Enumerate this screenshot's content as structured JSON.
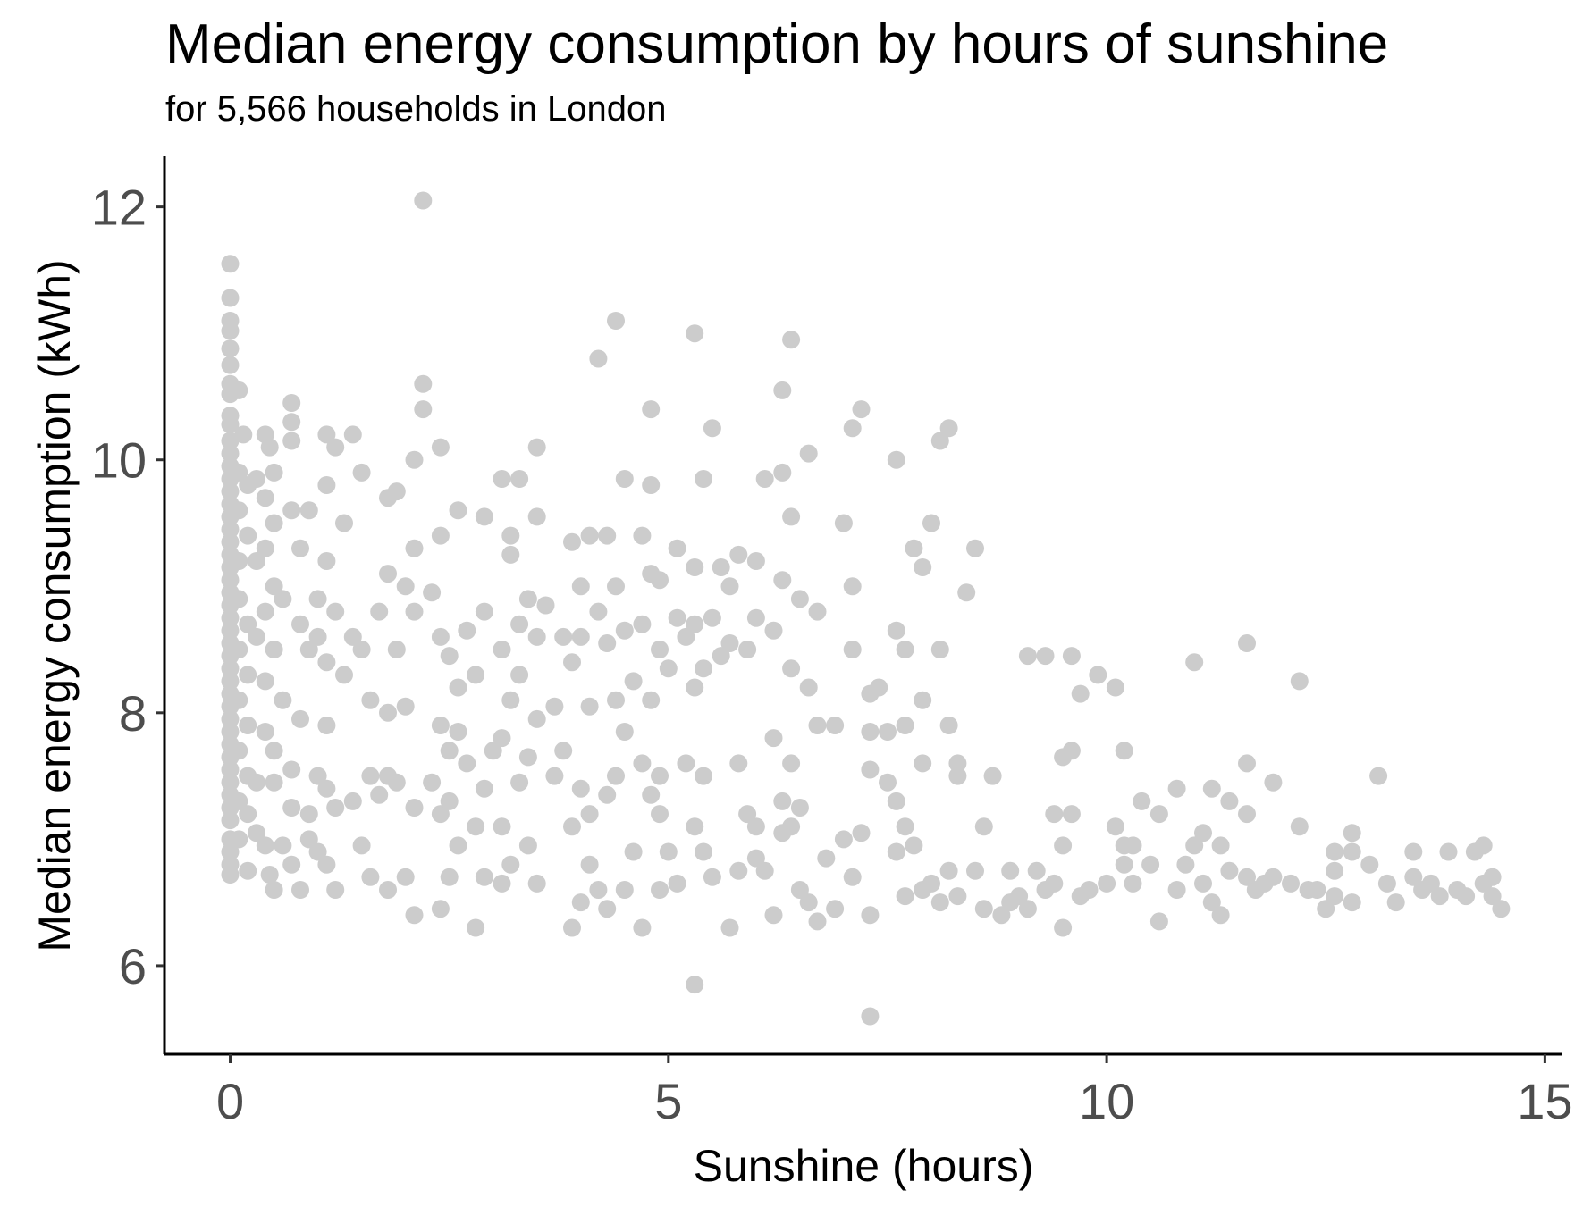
{
  "chart_data": {
    "type": "scatter",
    "title": "Median energy consumption by hours of sunshine",
    "subtitle": "for 5,566 households in London",
    "xlabel": "Sunshine (hours)",
    "ylabel": "Median energy consumption (kWh)",
    "xlim": [
      -0.75,
      15.2
    ],
    "ylim": [
      5.3,
      12.4
    ],
    "xticks": [
      0,
      5,
      10,
      15
    ],
    "yticks": [
      6,
      8,
      10,
      12
    ],
    "grid": false,
    "point_color": "#cccccc",
    "points": [
      [
        0,
        11.55
      ],
      [
        0,
        11.28
      ],
      [
        0,
        11.1
      ],
      [
        0,
        11.02
      ],
      [
        0,
        10.88
      ],
      [
        0,
        10.75
      ],
      [
        0,
        10.6
      ],
      [
        0,
        10.52
      ],
      [
        0,
        10.35
      ],
      [
        0,
        10.28
      ],
      [
        0,
        10.15
      ],
      [
        0,
        10.05
      ],
      [
        0,
        9.95
      ],
      [
        0,
        9.85
      ],
      [
        0,
        9.75
      ],
      [
        0,
        9.65
      ],
      [
        0,
        9.55
      ],
      [
        0,
        9.45
      ],
      [
        0,
        9.35
      ],
      [
        0,
        9.25
      ],
      [
        0,
        9.15
      ],
      [
        0,
        9.05
      ],
      [
        0,
        8.95
      ],
      [
        0,
        8.85
      ],
      [
        0,
        8.75
      ],
      [
        0,
        8.65
      ],
      [
        0,
        8.55
      ],
      [
        0,
        8.45
      ],
      [
        0,
        8.35
      ],
      [
        0,
        8.25
      ],
      [
        0,
        8.15
      ],
      [
        0,
        8.05
      ],
      [
        0,
        7.95
      ],
      [
        0,
        7.85
      ],
      [
        0,
        7.75
      ],
      [
        0,
        7.65
      ],
      [
        0,
        7.55
      ],
      [
        0,
        7.45
      ],
      [
        0,
        7.35
      ],
      [
        0,
        7.25
      ],
      [
        0,
        7.15
      ],
      [
        0,
        7.0
      ],
      [
        0,
        6.9
      ],
      [
        0,
        6.8
      ],
      [
        0,
        6.72
      ],
      [
        0.1,
        10.55
      ],
      [
        0.1,
        9.9
      ],
      [
        0.1,
        9.6
      ],
      [
        0.1,
        9.2
      ],
      [
        0.1,
        8.9
      ],
      [
        0.1,
        8.5
      ],
      [
        0.1,
        8.1
      ],
      [
        0.1,
        7.7
      ],
      [
        0.1,
        7.3
      ],
      [
        0.1,
        7.0
      ],
      [
        0.15,
        10.2
      ],
      [
        0.2,
        9.8
      ],
      [
        0.2,
        9.4
      ],
      [
        0.2,
        8.7
      ],
      [
        0.2,
        8.3
      ],
      [
        0.2,
        7.9
      ],
      [
        0.2,
        7.5
      ],
      [
        0.2,
        7.2
      ],
      [
        0.2,
        6.75
      ],
      [
        0.3,
        9.85
      ],
      [
        0.3,
        9.2
      ],
      [
        0.3,
        8.6
      ],
      [
        0.3,
        7.45
      ],
      [
        0.3,
        7.05
      ],
      [
        0.4,
        10.2
      ],
      [
        0.4,
        9.7
      ],
      [
        0.4,
        9.3
      ],
      [
        0.4,
        8.8
      ],
      [
        0.4,
        8.25
      ],
      [
        0.4,
        7.85
      ],
      [
        0.4,
        6.95
      ],
      [
        0.45,
        10.1
      ],
      [
        0.45,
        6.72
      ],
      [
        0.5,
        9.9
      ],
      [
        0.5,
        9.5
      ],
      [
        0.5,
        9.0
      ],
      [
        0.5,
        8.5
      ],
      [
        0.5,
        7.7
      ],
      [
        0.5,
        7.45
      ],
      [
        0.5,
        6.6
      ],
      [
        0.6,
        8.9
      ],
      [
        0.6,
        6.95
      ],
      [
        0.6,
        8.1
      ],
      [
        0.7,
        9.6
      ],
      [
        0.7,
        7.55
      ],
      [
        0.7,
        7.25
      ],
      [
        0.7,
        6.8
      ],
      [
        0.8,
        9.3
      ],
      [
        0.8,
        8.7
      ],
      [
        0.8,
        7.95
      ],
      [
        0.8,
        6.6
      ],
      [
        0.9,
        9.6
      ],
      [
        0.9,
        8.5
      ],
      [
        0.9,
        7.2
      ],
      [
        0.9,
        7.0
      ],
      [
        1.0,
        8.9
      ],
      [
        1.0,
        8.6
      ],
      [
        1.0,
        7.5
      ],
      [
        1.0,
        6.9
      ],
      [
        1.1,
        9.8
      ],
      [
        1.1,
        9.2
      ],
      [
        1.1,
        8.4
      ],
      [
        1.1,
        7.9
      ],
      [
        1.1,
        7.4
      ],
      [
        1.1,
        6.8
      ],
      [
        0.7,
        10.3
      ],
      [
        0.7,
        10.15
      ],
      [
        0.7,
        10.45
      ],
      [
        1.1,
        10.2
      ],
      [
        1.2,
        10.1
      ],
      [
        1.4,
        10.2
      ],
      [
        1.5,
        9.9
      ],
      [
        1.3,
        9.5
      ],
      [
        1.2,
        8.8
      ],
      [
        1.3,
        8.3
      ],
      [
        1.4,
        8.6
      ],
      [
        1.4,
        7.3
      ],
      [
        1.5,
        6.95
      ],
      [
        1.2,
        7.25
      ],
      [
        1.2,
        6.6
      ],
      [
        1.5,
        8.5
      ],
      [
        1.6,
        8.1
      ],
      [
        1.6,
        7.5
      ],
      [
        1.6,
        6.7
      ],
      [
        1.7,
        8.8
      ],
      [
        1.7,
        7.35
      ],
      [
        1.8,
        9.7
      ],
      [
        1.8,
        9.1
      ],
      [
        1.8,
        8.0
      ],
      [
        1.8,
        7.5
      ],
      [
        1.8,
        6.6
      ],
      [
        1.9,
        9.75
      ],
      [
        1.9,
        8.5
      ],
      [
        1.9,
        7.45
      ],
      [
        2.0,
        9.0
      ],
      [
        2.0,
        8.05
      ],
      [
        2.0,
        6.7
      ],
      [
        2.1,
        10.0
      ],
      [
        2.1,
        9.3
      ],
      [
        2.1,
        8.8
      ],
      [
        2.1,
        7.25
      ],
      [
        2.1,
        6.4
      ],
      [
        2.2,
        12.05
      ],
      [
        2.2,
        10.6
      ],
      [
        2.2,
        10.4
      ],
      [
        2.3,
        8.95
      ],
      [
        2.3,
        7.45
      ],
      [
        2.4,
        10.1
      ],
      [
        2.4,
        9.4
      ],
      [
        2.4,
        8.6
      ],
      [
        2.4,
        7.9
      ],
      [
        2.4,
        7.2
      ],
      [
        2.4,
        6.45
      ],
      [
        2.5,
        8.45
      ],
      [
        2.5,
        7.7
      ],
      [
        2.5,
        7.3
      ],
      [
        2.5,
        6.7
      ],
      [
        2.6,
        9.6
      ],
      [
        2.6,
        8.2
      ],
      [
        2.6,
        7.85
      ],
      [
        2.6,
        6.95
      ],
      [
        2.7,
        8.65
      ],
      [
        2.7,
        7.6
      ],
      [
        2.8,
        8.3
      ],
      [
        2.8,
        6.3
      ],
      [
        2.8,
        7.1
      ],
      [
        2.9,
        9.55
      ],
      [
        2.9,
        8.8
      ],
      [
        2.9,
        7.4
      ],
      [
        2.9,
        6.7
      ],
      [
        3.0,
        7.7
      ],
      [
        3.1,
        9.85
      ],
      [
        3.1,
        8.5
      ],
      [
        3.1,
        7.8
      ],
      [
        3.1,
        7.1
      ],
      [
        3.1,
        6.65
      ],
      [
        3.2,
        9.4
      ],
      [
        3.2,
        9.25
      ],
      [
        3.2,
        8.1
      ],
      [
        3.2,
        6.8
      ],
      [
        3.3,
        9.85
      ],
      [
        3.3,
        8.7
      ],
      [
        3.3,
        8.3
      ],
      [
        3.3,
        7.45
      ],
      [
        3.4,
        8.9
      ],
      [
        3.4,
        7.65
      ],
      [
        3.4,
        6.95
      ],
      [
        3.5,
        10.1
      ],
      [
        3.5,
        9.55
      ],
      [
        3.5,
        8.6
      ],
      [
        3.5,
        7.95
      ],
      [
        3.5,
        6.65
      ],
      [
        3.6,
        8.85
      ],
      [
        3.7,
        8.05
      ],
      [
        3.7,
        7.5
      ],
      [
        3.8,
        8.6
      ],
      [
        3.8,
        7.7
      ],
      [
        3.9,
        9.35
      ],
      [
        3.9,
        8.4
      ],
      [
        3.9,
        7.1
      ],
      [
        3.9,
        6.3
      ],
      [
        4.0,
        9.0
      ],
      [
        4.0,
        8.6
      ],
      [
        4.0,
        7.4
      ],
      [
        4.0,
        6.5
      ],
      [
        4.1,
        9.4
      ],
      [
        4.1,
        8.05
      ],
      [
        4.1,
        7.2
      ],
      [
        4.1,
        6.8
      ],
      [
        4.2,
        10.8
      ],
      [
        4.2,
        8.8
      ],
      [
        4.2,
        6.6
      ],
      [
        4.3,
        9.4
      ],
      [
        4.3,
        8.55
      ],
      [
        4.3,
        7.35
      ],
      [
        4.3,
        6.45
      ],
      [
        4.4,
        11.1
      ],
      [
        4.4,
        9.0
      ],
      [
        4.4,
        8.1
      ],
      [
        4.4,
        7.5
      ],
      [
        4.5,
        9.85
      ],
      [
        4.5,
        8.65
      ],
      [
        4.5,
        7.85
      ],
      [
        4.5,
        6.6
      ],
      [
        4.6,
        8.25
      ],
      [
        4.6,
        6.9
      ],
      [
        4.7,
        9.4
      ],
      [
        4.7,
        8.7
      ],
      [
        4.7,
        7.6
      ],
      [
        4.7,
        6.3
      ],
      [
        4.8,
        10.4
      ],
      [
        4.8,
        9.8
      ],
      [
        4.8,
        9.1
      ],
      [
        4.8,
        8.1
      ],
      [
        4.8,
        7.35
      ],
      [
        4.9,
        9.05
      ],
      [
        4.9,
        8.5
      ],
      [
        4.9,
        7.5
      ],
      [
        4.9,
        7.2
      ],
      [
        4.9,
        6.6
      ],
      [
        5.0,
        8.35
      ],
      [
        5.0,
        6.9
      ],
      [
        5.1,
        9.3
      ],
      [
        5.1,
        8.75
      ],
      [
        5.1,
        6.65
      ],
      [
        5.2,
        8.6
      ],
      [
        5.2,
        7.6
      ],
      [
        5.3,
        11.0
      ],
      [
        5.3,
        9.15
      ],
      [
        5.3,
        8.7
      ],
      [
        5.3,
        8.2
      ],
      [
        5.3,
        7.1
      ],
      [
        5.3,
        5.85
      ],
      [
        5.4,
        9.85
      ],
      [
        5.4,
        8.35
      ],
      [
        5.4,
        7.5
      ],
      [
        5.4,
        6.9
      ],
      [
        5.5,
        10.25
      ],
      [
        5.5,
        8.75
      ],
      [
        5.5,
        6.7
      ],
      [
        5.6,
        9.15
      ],
      [
        5.6,
        8.45
      ],
      [
        5.7,
        9.0
      ],
      [
        5.7,
        8.55
      ],
      [
        5.7,
        6.3
      ],
      [
        5.8,
        9.25
      ],
      [
        5.8,
        7.6
      ],
      [
        5.8,
        6.75
      ],
      [
        5.9,
        8.5
      ],
      [
        5.9,
        7.2
      ],
      [
        6.0,
        9.2
      ],
      [
        6.0,
        8.75
      ],
      [
        6.0,
        7.1
      ],
      [
        6.0,
        6.85
      ],
      [
        6.1,
        9.85
      ],
      [
        6.1,
        6.75
      ],
      [
        6.2,
        8.65
      ],
      [
        6.2,
        7.8
      ],
      [
        6.2,
        6.4
      ],
      [
        6.3,
        10.55
      ],
      [
        6.3,
        9.9
      ],
      [
        6.3,
        9.05
      ],
      [
        6.3,
        7.3
      ],
      [
        6.3,
        7.05
      ],
      [
        6.4,
        10.95
      ],
      [
        6.4,
        9.55
      ],
      [
        6.4,
        8.35
      ],
      [
        6.4,
        7.6
      ],
      [
        6.4,
        7.1
      ],
      [
        6.5,
        8.9
      ],
      [
        6.5,
        7.25
      ],
      [
        6.5,
        6.6
      ],
      [
        6.6,
        10.05
      ],
      [
        6.6,
        8.2
      ],
      [
        6.6,
        6.5
      ],
      [
        6.7,
        8.8
      ],
      [
        6.7,
        7.9
      ],
      [
        6.7,
        6.35
      ],
      [
        6.8,
        6.85
      ],
      [
        6.9,
        7.9
      ],
      [
        6.9,
        6.45
      ],
      [
        7.0,
        9.5
      ],
      [
        7.0,
        7.0
      ],
      [
        7.1,
        10.25
      ],
      [
        7.1,
        9.0
      ],
      [
        7.1,
        8.5
      ],
      [
        7.1,
        6.7
      ],
      [
        7.2,
        10.4
      ],
      [
        7.2,
        7.05
      ],
      [
        7.3,
        8.15
      ],
      [
        7.3,
        7.85
      ],
      [
        7.3,
        7.55
      ],
      [
        7.3,
        6.4
      ],
      [
        7.3,
        5.6
      ],
      [
        7.4,
        8.2
      ],
      [
        7.5,
        7.85
      ],
      [
        7.5,
        7.45
      ],
      [
        7.6,
        10.0
      ],
      [
        7.6,
        8.65
      ],
      [
        7.6,
        7.3
      ],
      [
        7.6,
        6.9
      ],
      [
        7.7,
        8.5
      ],
      [
        7.7,
        7.9
      ],
      [
        7.7,
        7.1
      ],
      [
        7.7,
        6.55
      ],
      [
        7.8,
        9.3
      ],
      [
        7.8,
        6.95
      ],
      [
        7.9,
        9.15
      ],
      [
        7.9,
        8.1
      ],
      [
        7.9,
        7.6
      ],
      [
        7.9,
        6.6
      ],
      [
        8.0,
        9.5
      ],
      [
        8.0,
        6.65
      ],
      [
        8.1,
        10.15
      ],
      [
        8.1,
        8.5
      ],
      [
        8.1,
        6.5
      ],
      [
        8.2,
        10.25
      ],
      [
        8.2,
        7.9
      ],
      [
        8.2,
        6.75
      ],
      [
        8.3,
        7.6
      ],
      [
        8.3,
        7.5
      ],
      [
        8.3,
        6.55
      ],
      [
        8.4,
        8.95
      ],
      [
        8.5,
        9.3
      ],
      [
        8.5,
        6.75
      ],
      [
        8.6,
        7.1
      ],
      [
        8.6,
        6.45
      ],
      [
        8.7,
        7.5
      ],
      [
        8.8,
        6.4
      ],
      [
        8.9,
        6.75
      ],
      [
        8.9,
        6.5
      ],
      [
        9.0,
        6.55
      ],
      [
        9.1,
        8.45
      ],
      [
        9.1,
        6.45
      ],
      [
        9.2,
        6.75
      ],
      [
        9.3,
        8.45
      ],
      [
        9.3,
        6.6
      ],
      [
        9.4,
        7.2
      ],
      [
        9.4,
        6.65
      ],
      [
        9.5,
        7.65
      ],
      [
        9.5,
        6.95
      ],
      [
        9.5,
        6.3
      ],
      [
        9.6,
        8.45
      ],
      [
        9.6,
        7.7
      ],
      [
        9.6,
        7.2
      ],
      [
        9.7,
        8.15
      ],
      [
        9.7,
        6.55
      ],
      [
        9.8,
        6.6
      ],
      [
        9.9,
        8.3
      ],
      [
        10.0,
        6.65
      ],
      [
        10.1,
        8.2
      ],
      [
        10.1,
        7.1
      ],
      [
        10.2,
        7.7
      ],
      [
        10.2,
        6.95
      ],
      [
        10.2,
        6.8
      ],
      [
        10.3,
        6.95
      ],
      [
        10.3,
        6.65
      ],
      [
        10.4,
        7.3
      ],
      [
        10.5,
        6.8
      ],
      [
        10.6,
        7.2
      ],
      [
        10.6,
        6.35
      ],
      [
        10.8,
        7.4
      ],
      [
        10.8,
        6.6
      ],
      [
        10.9,
        6.8
      ],
      [
        11.0,
        8.4
      ],
      [
        11.0,
        6.95
      ],
      [
        11.1,
        7.05
      ],
      [
        11.1,
        6.65
      ],
      [
        11.2,
        7.4
      ],
      [
        11.2,
        6.5
      ],
      [
        11.3,
        6.95
      ],
      [
        11.3,
        6.4
      ],
      [
        11.4,
        7.3
      ],
      [
        11.4,
        6.75
      ],
      [
        11.6,
        8.55
      ],
      [
        11.6,
        7.6
      ],
      [
        11.6,
        7.2
      ],
      [
        11.6,
        6.7
      ],
      [
        11.7,
        6.6
      ],
      [
        11.8,
        6.65
      ],
      [
        11.9,
        7.45
      ],
      [
        11.9,
        6.7
      ],
      [
        12.1,
        6.65
      ],
      [
        12.2,
        8.25
      ],
      [
        12.2,
        7.1
      ],
      [
        12.3,
        6.6
      ],
      [
        12.4,
        6.6
      ],
      [
        12.5,
        6.45
      ],
      [
        12.6,
        6.9
      ],
      [
        12.6,
        6.75
      ],
      [
        12.6,
        6.55
      ],
      [
        12.8,
        7.05
      ],
      [
        12.8,
        6.9
      ],
      [
        12.8,
        6.5
      ],
      [
        13.0,
        6.8
      ],
      [
        13.1,
        7.5
      ],
      [
        13.2,
        6.65
      ],
      [
        13.3,
        6.5
      ],
      [
        13.5,
        6.9
      ],
      [
        13.5,
        6.7
      ],
      [
        13.6,
        6.6
      ],
      [
        13.7,
        6.65
      ],
      [
        13.8,
        6.55
      ],
      [
        13.9,
        6.9
      ],
      [
        14.0,
        6.6
      ],
      [
        14.1,
        6.55
      ],
      [
        14.2,
        6.9
      ],
      [
        14.3,
        6.65
      ],
      [
        14.3,
        6.95
      ],
      [
        14.4,
        6.7
      ],
      [
        14.4,
        6.55
      ],
      [
        14.5,
        6.45
      ]
    ]
  }
}
